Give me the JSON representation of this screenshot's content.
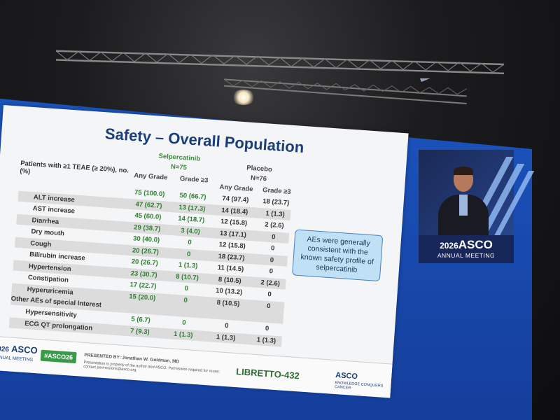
{
  "slide": {
    "title": "Safety – Overall Population",
    "group1": {
      "name": "Selpercatinib",
      "n": "N=75"
    },
    "group2": {
      "name": "Placebo",
      "n": "N=76"
    },
    "row_label_header": "Patients with ≥1 TEAE (≥ 20%), no. (%)",
    "col_headers": [
      "Any Grade",
      "Grade ≥3",
      "Any Grade",
      "Grade ≥3"
    ],
    "rows": [
      {
        "label": "",
        "v": [
          "75 (100.0)",
          "50 (66.7)",
          "74 (97.4)",
          "18 (23.7)"
        ]
      },
      {
        "label": "ALT increase",
        "v": [
          "47 (62.7)",
          "13 (17.3)",
          "14 (18.4)",
          "1 (1.3)"
        ]
      },
      {
        "label": "AST increase",
        "v": [
          "45 (60.0)",
          "14 (18.7)",
          "12 (15.8)",
          "2 (2.6)"
        ]
      },
      {
        "label": "Diarrhea",
        "v": [
          "29 (38.7)",
          "3 (4.0)",
          "13 (17.1)",
          "0"
        ]
      },
      {
        "label": "Dry mouth",
        "v": [
          "30 (40.0)",
          "0",
          "12 (15.8)",
          "0"
        ]
      },
      {
        "label": "Cough",
        "v": [
          "20 (26.7)",
          "0",
          "18 (23.7)",
          "0"
        ]
      },
      {
        "label": "Bilirubin increase",
        "v": [
          "20 (26.7)",
          "1 (1.3)",
          "11 (14.5)",
          "0"
        ]
      },
      {
        "label": "Hypertension",
        "v": [
          "23 (30.7)",
          "8 (10.7)",
          "8 (10.5)",
          "2 (2.6)"
        ]
      },
      {
        "label": "Constipation",
        "v": [
          "17 (22.7)",
          "0",
          "10 (13.2)",
          "0"
        ]
      },
      {
        "label": "Hyperuricemia",
        "v": [
          "15 (20.0)",
          "0",
          "8 (10.5)",
          "0"
        ]
      }
    ],
    "special_header": "Other AEs of special Interest",
    "special_rows": [
      {
        "label": "Hypersensitivity",
        "v": [
          "5 (6.7)",
          "0",
          "0",
          "0"
        ]
      },
      {
        "label": "ECG QT prolongation",
        "v": [
          "7 (9.3)",
          "1 (1.3)",
          "1 (1.3)",
          "1 (1.3)"
        ]
      }
    ],
    "callout": "AEs were generally consistent with the known safety profile of selpercatinib",
    "footer": {
      "meeting_year": "2026",
      "meeting_brand": "ASCO",
      "meeting_sub": "ANNUAL MEETING",
      "hashtag": "#ASCO26",
      "presented_by": "PRESENTED BY: Jonathan W. Goldman, MD",
      "notice": "Presentation is property of the author and ASCO. Permission required for reuse; contact permissions@asco.org.",
      "trial": "LIBRETTO-432",
      "asco_right": "ASCO",
      "asco_right_tag": "KNOWLEDGE CONQUERS CANCER"
    }
  },
  "speaker_panel": {
    "year": "2026",
    "brand": "ASCO",
    "subtitle": "ANNUAL MEETING"
  },
  "colors": {
    "screen_blue": "#1f5fcf",
    "title_navy": "#1c3e78",
    "accent_green": "#2f7d32",
    "callout_fill": "#bfe0f5"
  }
}
